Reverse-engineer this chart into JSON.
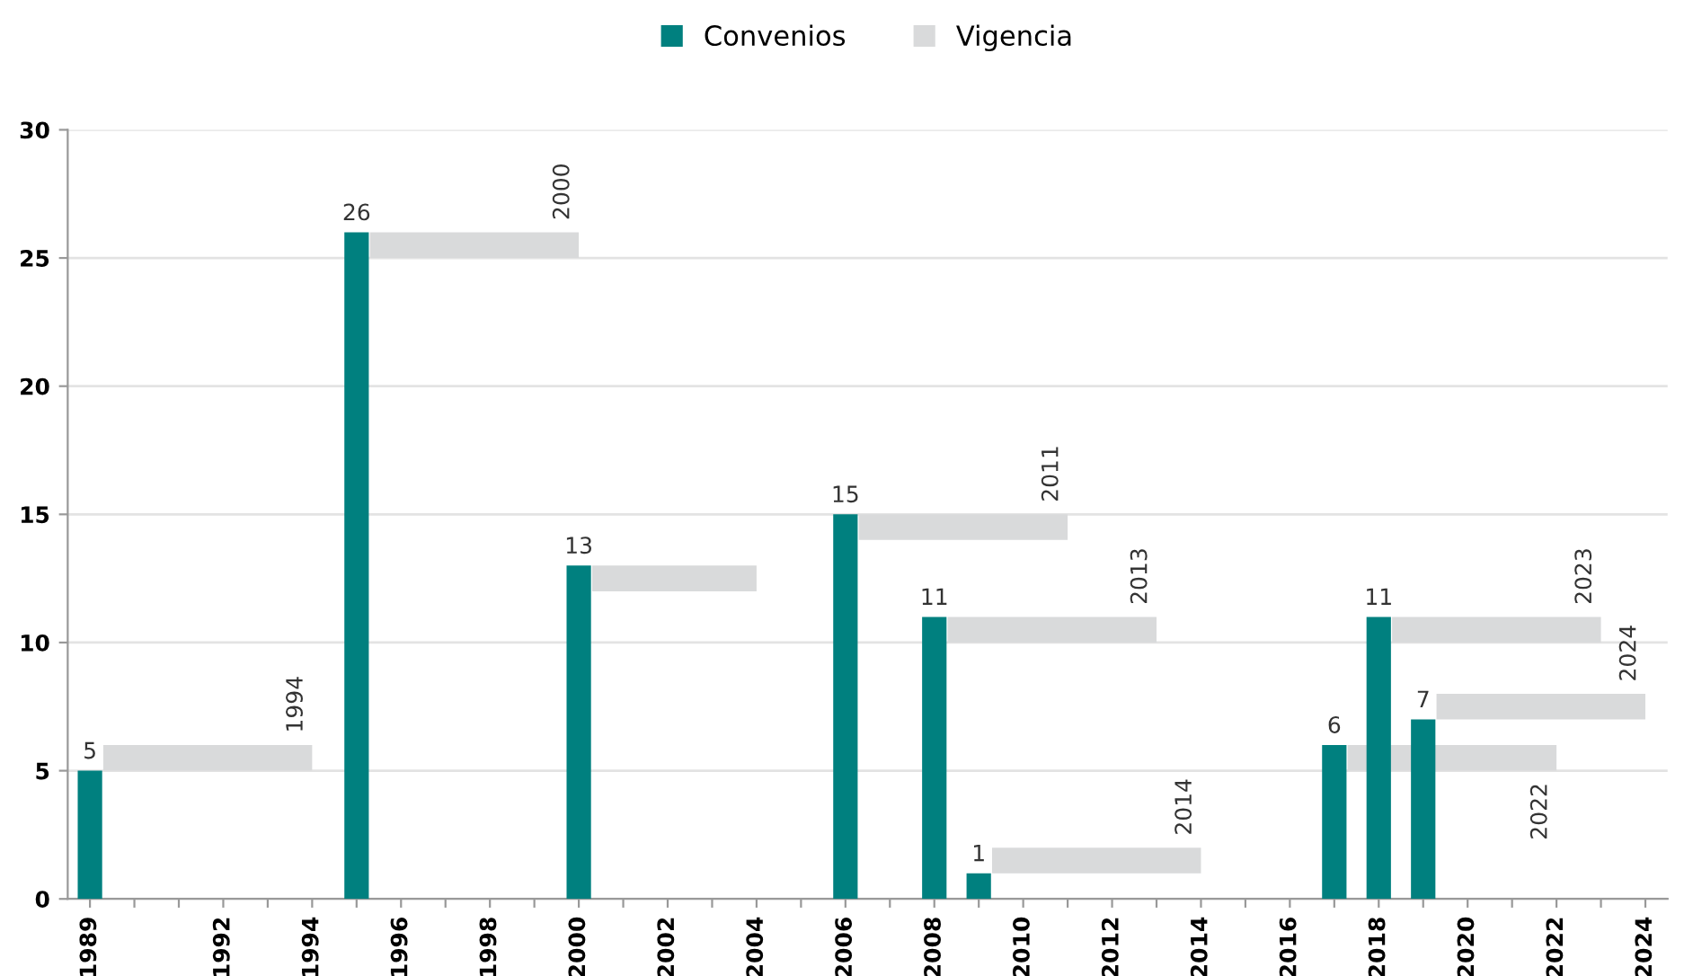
{
  "chart_data": {
    "type": "bar",
    "legend": "top",
    "grid": "y",
    "xlim": [
      1988.5,
      2024.5
    ],
    "ylim": [
      0,
      30
    ],
    "yticks": [
      0,
      5,
      10,
      15,
      20,
      25,
      30
    ],
    "xticks": [
      1989,
      {
        "value": 1990,
        "label": null
      },
      {
        "value": 1991,
        "label": null
      },
      1992,
      {
        "value": 1993,
        "label": null
      },
      1994,
      {
        "value": 1995,
        "label": null
      },
      1996,
      {
        "value": 1997,
        "label": null
      },
      1998,
      {
        "value": 1999,
        "label": null
      },
      2000,
      {
        "value": 2001,
        "label": null
      },
      2002,
      {
        "value": 2003,
        "label": null
      },
      2004,
      {
        "value": 2005,
        "label": null
      },
      2006,
      {
        "value": 2007,
        "label": null
      },
      2008,
      {
        "value": 2009,
        "label": null
      },
      2010,
      {
        "value": 2011,
        "label": null
      },
      2012,
      {
        "value": 2013,
        "label": null
      },
      2014,
      {
        "value": 2015,
        "label": null
      },
      2016,
      {
        "value": 2017,
        "label": null
      },
      2018,
      {
        "value": 2019,
        "label": null
      },
      2020,
      {
        "value": 2021,
        "label": null
      },
      2022,
      {
        "value": 2023,
        "label": null
      },
      2024
    ],
    "series": [
      {
        "name": "Convenios",
        "color": "#00807f",
        "x": [
          1989,
          1995,
          2000,
          2006,
          2008,
          2009,
          2017,
          2018,
          2019
        ],
        "values": [
          5,
          26,
          13,
          15,
          11,
          1,
          6,
          11,
          7
        ],
        "value_labels": [
          "5",
          "26",
          "13",
          "15",
          "11",
          "1",
          "6",
          "11",
          "7"
        ]
      },
      {
        "name": "Vigencia",
        "type": "line",
        "color": "#d9dadb",
        "x": [
          1989.3,
          1994
        ],
        "values": [
          5.5,
          5.5
        ]
      },
      {
        "type": "line",
        "color": "#d9dadb",
        "x": [
          1995.3,
          2000
        ],
        "values": [
          25.5,
          25.5
        ]
      },
      {
        "type": "line",
        "color": "#d9dadb",
        "x": [
          2000.3,
          2004
        ],
        "values": [
          12.5,
          12.5
        ]
      },
      {
        "type": "line",
        "color": "#d9dadb",
        "x": [
          2006.3,
          2011
        ],
        "values": [
          14.5,
          14.5
        ]
      },
      {
        "type": "line",
        "color": "#d9dadb",
        "x": [
          2008.3,
          2013
        ],
        "values": [
          10.5,
          10.5
        ]
      },
      {
        "type": "line",
        "color": "#d9dadb",
        "x": [
          2009.3,
          2014
        ],
        "values": [
          1.5,
          1.5
        ]
      },
      {
        "type": "line",
        "color": "#d9dadb",
        "x": [
          2017.3,
          2022
        ],
        "values": [
          5.5,
          5.5
        ]
      },
      {
        "type": "line",
        "color": "#d9dadb",
        "x": [
          2018.3,
          2023
        ],
        "values": [
          10.5,
          10.5
        ]
      },
      {
        "type": "line",
        "color": "#d9dadb",
        "x": [
          2019.3,
          2024
        ],
        "values": [
          7.5,
          7.5
        ]
      }
    ],
    "annotations": [
      {
        "text": "1994",
        "x": 1994,
        "y": 5.5
      },
      {
        "text": "2000",
        "x": 2000,
        "y": 25.5
      },
      {
        "text": "2011",
        "x": 2011,
        "y": 14.5
      },
      {
        "text": "2013",
        "x": 2013,
        "y": 10.5
      },
      {
        "text": "2014",
        "x": 2014,
        "y": 1.5
      },
      {
        "text": "2022",
        "x": 2022,
        "y": 5.5
      },
      {
        "text": "2023",
        "x": 2023,
        "y": 10.5
      },
      {
        "text": "2024",
        "x": 2024,
        "y": 7.5
      }
    ]
  }
}
